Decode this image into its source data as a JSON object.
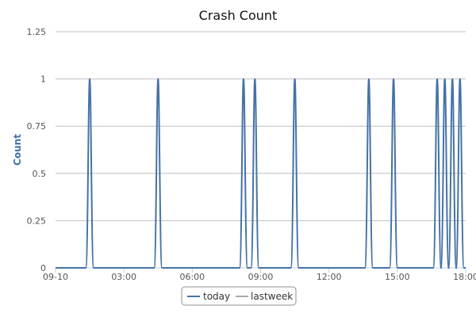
{
  "chart_data": {
    "type": "line",
    "title": "Crash Count",
    "xlabel": "",
    "ylabel": "Count",
    "xlim": [
      "09-10 00:00",
      "09-10 18:00"
    ],
    "ylim": [
      0,
      1.25
    ],
    "x_ticks": [
      "09-10",
      "03:00",
      "06:00",
      "09:00",
      "12:00",
      "15:00",
      "18:00"
    ],
    "y_ticks": [
      "0",
      "0.25",
      "0.5",
      "0.75",
      "1",
      "1.25"
    ],
    "grid": true,
    "legend_position": "bottom-center",
    "series": [
      {
        "name": "today",
        "color": "#4572a7",
        "values": [
          {
            "x": "09-10 00:00",
            "y": 0
          },
          {
            "x": "09-10 01:30",
            "y": 1
          },
          {
            "x": "09-10 04:30",
            "y": 1
          },
          {
            "x": "09-10 08:15",
            "y": 1
          },
          {
            "x": "09-10 08:45",
            "y": 1
          },
          {
            "x": "09-10 10:30",
            "y": 1
          },
          {
            "x": "09-10 13:45",
            "y": 1
          },
          {
            "x": "09-10 14:50",
            "y": 1
          },
          {
            "x": "09-10 16:45",
            "y": 1
          },
          {
            "x": "09-10 17:05",
            "y": 1
          },
          {
            "x": "09-10 17:25",
            "y": 1
          },
          {
            "x": "09-10 17:45",
            "y": 1
          },
          {
            "x": "09-10 18:00",
            "y": 0
          }
        ]
      },
      {
        "name": "lastweek",
        "color": "#aaaaaa",
        "values": []
      }
    ]
  }
}
